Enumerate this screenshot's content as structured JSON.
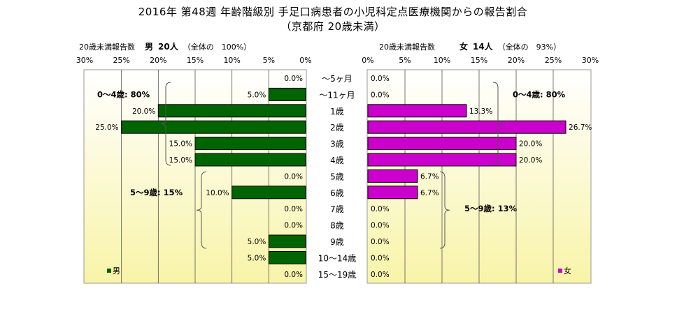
{
  "title_line1": "2016年 第48週 年齢階級別 手足口病患者の小児科定点医療機関からの報告割合",
  "title_line2": "（京都府 20歳未満）",
  "left_header": {
    "label": "20歳未満報告数",
    "sex": "男",
    "count": "20人",
    "share": "（全体の　100%）"
  },
  "right_header": {
    "label": "20歳未満報告数",
    "sex": "女",
    "count": "14人",
    "share": "（全体の　93%）"
  },
  "ticks_left": [
    "30%",
    "25%",
    "20%",
    "15%",
    "10%",
    "5%",
    "0%"
  ],
  "ticks_right": [
    "0%",
    "5%",
    "10%",
    "15%",
    "20%",
    "25%",
    "30%"
  ],
  "age_groups": [
    "～5ヶ月",
    "～11ヶ月",
    "1歳",
    "2歳",
    "3歳",
    "4歳",
    "5歳",
    "6歳",
    "7歳",
    "8歳",
    "9歳",
    "10～14歳",
    "15～19歳"
  ],
  "annotations": {
    "male_0_4": "0～4歳: 80%",
    "male_5_9": "5～9歳: 15%",
    "female_0_4": "0～4歳: 80%",
    "female_5_9": "5～9歳: 13%"
  },
  "colors": {
    "male": "#006400",
    "female": "#cc00cc",
    "panel_top": "#ffffff",
    "panel_bottom": "#f8f4a8"
  },
  "chart_data": {
    "type": "bar",
    "orientation": "horizontal",
    "title": "2016年 第48週 年齢階級別 手足口病患者の小児科定点医療機関からの報告割合",
    "subtitle": "（京都府 20歳未満）",
    "categories": [
      "～5ヶ月",
      "～11ヶ月",
      "1歳",
      "2歳",
      "3歳",
      "4歳",
      "5歳",
      "6歳",
      "7歳",
      "8歳",
      "9歳",
      "10～14歳",
      "15～19歳"
    ],
    "xlim": [
      0,
      30
    ],
    "series": [
      {
        "name": "男",
        "values": [
          0.0,
          5.0,
          20.0,
          25.0,
          15.0,
          15.0,
          0.0,
          10.0,
          0.0,
          0.0,
          5.0,
          5.0,
          0.0
        ],
        "labels": [
          "0.0%",
          "5.0%",
          "20.0%",
          "25.0%",
          "15.0%",
          "15.0%",
          "0.0%",
          "10.0%",
          "0.0%",
          "0.0%",
          "5.0%",
          "5.0%",
          "0.0%"
        ]
      },
      {
        "name": "女",
        "values": [
          0.0,
          0.0,
          13.3,
          26.7,
          20.0,
          20.0,
          6.7,
          6.7,
          0.0,
          0.0,
          0.0,
          0.0,
          0.0
        ],
        "labels": [
          "0.0%",
          "0.0%",
          "13.3%",
          "26.7%",
          "20.0%",
          "20.0%",
          "6.7%",
          "6.7%",
          "0.0%",
          "0.0%",
          "0.0%",
          "0.0%",
          "0.0%"
        ]
      }
    ],
    "legend": "bottom-left (男), bottom-right (女)",
    "grid": true
  }
}
